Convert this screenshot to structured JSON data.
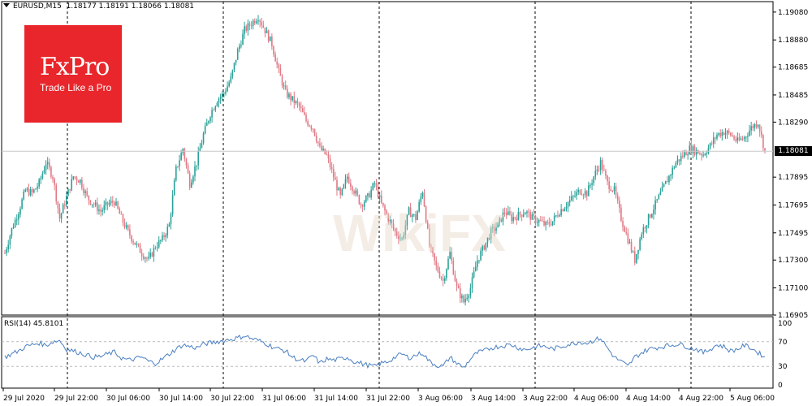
{
  "header": {
    "symbol": "EURUSD,M15",
    "ohlc": "1.18177 1.18191 1.18066 1.18081"
  },
  "logo": {
    "brand": "FxPro",
    "tagline": "Trade Like a Pro"
  },
  "watermark": {
    "text": "WikiFX"
  },
  "current_price_label": "1.18081",
  "rsi_label": "RSI(14) 45.8101",
  "colors": {
    "up": "#2aa198",
    "down": "#e07a86",
    "rsi": "#4a7fc1",
    "logo": "#e8262b",
    "grid": "#000000",
    "level": "#bbbbbb"
  },
  "chart_data": [
    {
      "type": "line",
      "title": "EURUSD,M15",
      "xlabel": "",
      "ylabel": "",
      "y_ticks": [
        "1.19080",
        "1.18880",
        "1.18685",
        "1.18485",
        "1.18290",
        "1.18081",
        "1.17895",
        "1.17695",
        "1.17495",
        "1.17300",
        "1.17100",
        "1.16905"
      ],
      "ylim": [
        1.16905,
        1.19155
      ],
      "x_ticks": [
        "29 Jul 2020",
        "29 Jul 22:00",
        "30 Jul 06:00",
        "30 Jul 14:00",
        "30 Jul 22:00",
        "31 Jul 06:00",
        "31 Jul 14:00",
        "31 Jul 22:00",
        "3 Aug 06:00",
        "3 Aug 14:00",
        "3 Aug 22:00",
        "4 Aug 06:00",
        "4 Aug 14:00",
        "4 Aug 22:00",
        "5 Aug 06:00"
      ],
      "grid": "vertical dashed at period separators",
      "current_price": 1.18081,
      "series": [
        {
          "values": [
            1.1735,
            1.1752,
            1.1765,
            1.178,
            1.1778,
            1.1785,
            1.18,
            1.179,
            1.176,
            1.1775,
            1.179,
            1.1787,
            1.1775,
            1.177,
            1.1765,
            1.177,
            1.1772,
            1.176,
            1.175,
            1.1742,
            1.1735,
            1.173,
            1.174,
            1.1745,
            1.1755,
            1.1795,
            1.181,
            1.1785,
            1.18,
            1.182,
            1.1835,
            1.1845,
            1.185,
            1.186,
            1.188,
            1.1895,
            1.19,
            1.1905,
            1.1895,
            1.1885,
            1.1865,
            1.185,
            1.1845,
            1.184,
            1.183,
            1.1825,
            1.181,
            1.1805,
            1.179,
            1.1775,
            1.179,
            1.178,
            1.177,
            1.1775,
            1.1785,
            1.177,
            1.176,
            1.175,
            1.1745,
            1.1765,
            1.176,
            1.178,
            1.174,
            1.1725,
            1.1715,
            1.1735,
            1.171,
            1.17,
            1.171,
            1.173,
            1.174,
            1.175,
            1.1755,
            1.1765,
            1.176,
            1.1762,
            1.1765,
            1.176,
            1.1758,
            1.1755,
            1.1758,
            1.1765,
            1.177,
            1.1775,
            1.178,
            1.1778,
            1.179,
            1.18,
            1.1785,
            1.178,
            1.176,
            1.1745,
            1.173,
            1.175,
            1.176,
            1.177,
            1.178,
            1.179,
            1.18,
            1.1805,
            1.181,
            1.1808,
            1.1806,
            1.1812,
            1.182,
            1.1822,
            1.182,
            1.1815,
            1.1818,
            1.1825,
            1.1829,
            1.1808
          ]
        }
      ]
    },
    {
      "type": "line",
      "title": "RSI(14)",
      "y_ticks": [
        0,
        30,
        70,
        100
      ],
      "ylim": [
        0,
        100
      ],
      "levels": [
        30,
        70
      ],
      "series": [
        {
          "values": [
            45,
            50,
            55,
            62,
            65,
            68,
            64,
            70,
            72,
            58,
            55,
            52,
            48,
            45,
            46,
            50,
            53,
            44,
            40,
            42,
            45,
            38,
            35,
            42,
            50,
            58,
            65,
            62,
            60,
            66,
            68,
            70,
            72,
            74,
            76,
            80,
            75,
            72,
            68,
            62,
            58,
            55,
            45,
            40,
            38,
            48,
            35,
            42,
            40,
            42,
            45,
            38,
            35,
            32,
            30,
            35,
            38,
            45,
            50,
            44,
            48,
            52,
            38,
            32,
            30,
            45,
            35,
            28,
            42,
            52,
            55,
            60,
            62,
            64,
            65,
            60,
            57,
            60,
            63,
            62,
            58,
            61,
            65,
            67,
            70,
            68,
            72,
            76,
            60,
            45,
            38,
            30,
            45,
            52,
            58,
            60,
            62,
            64,
            66,
            65,
            60,
            58,
            52,
            58,
            65,
            62,
            55,
            58,
            64,
            60,
            52,
            45.8
          ]
        }
      ]
    }
  ]
}
